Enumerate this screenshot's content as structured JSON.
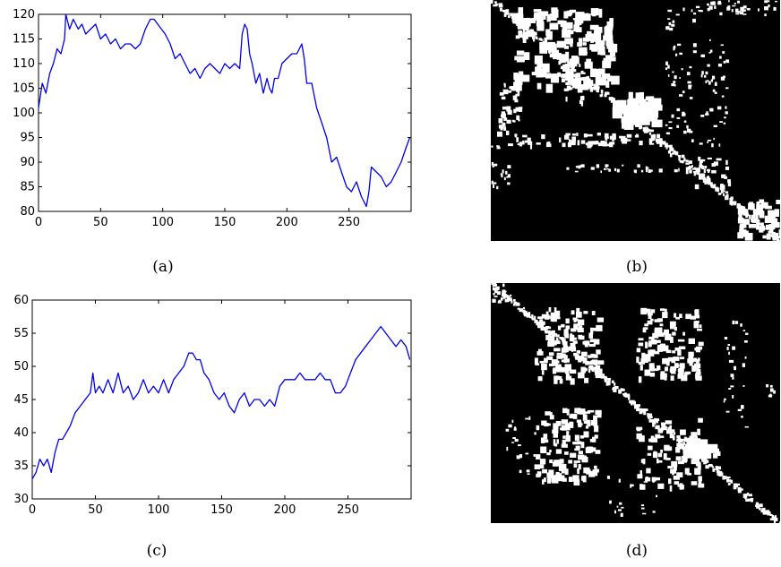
{
  "captions": {
    "a": "(a)",
    "b": "(b)",
    "c": "(c)",
    "d": "(d)"
  },
  "chart_data": [
    {
      "panel": "(a)",
      "type": "line",
      "title": "",
      "xlabel": "",
      "ylabel": "",
      "xlim": [
        0,
        300
      ],
      "ylim": [
        80,
        120
      ],
      "xticks": [
        0,
        50,
        100,
        150,
        200,
        250
      ],
      "yticks": [
        80,
        85,
        90,
        95,
        100,
        105,
        110,
        115,
        120
      ],
      "grid": false,
      "series_color": "#0000ee",
      "series": [
        {
          "x": [
            0,
            3,
            6,
            9,
            12,
            15,
            18,
            21,
            22,
            25,
            28,
            32,
            35,
            38,
            42,
            46,
            50,
            54,
            58,
            62,
            66,
            70,
            74,
            78,
            82,
            86,
            90,
            93,
            96,
            99,
            102,
            106,
            110,
            114,
            118,
            122,
            126,
            130,
            134,
            138,
            142,
            146,
            150,
            154,
            158,
            162,
            164,
            166,
            168,
            170,
            172,
            175,
            178,
            181,
            184,
            186,
            188,
            190,
            193,
            196,
            200,
            204,
            208,
            212,
            214,
            216,
            220,
            224,
            228,
            232,
            236,
            240,
            244,
            248,
            252,
            256,
            260,
            264,
            266,
            268,
            272,
            276,
            280,
            284,
            288,
            292,
            296,
            299
          ],
          "y": [
            101,
            106,
            104,
            108,
            110,
            113,
            112,
            115,
            120,
            117,
            119,
            117,
            118,
            116,
            117,
            118,
            115,
            116,
            114,
            115,
            113,
            114,
            114,
            113,
            114,
            117,
            119,
            119,
            118,
            117,
            116,
            114,
            111,
            112,
            110,
            108,
            109,
            107,
            109,
            110,
            109,
            108,
            110,
            109,
            110,
            109,
            116,
            118,
            117,
            112,
            110,
            106,
            108,
            104,
            107,
            105,
            104,
            107,
            107,
            110,
            111,
            112,
            112,
            114,
            111,
            106,
            106,
            101,
            98,
            95,
            90,
            91,
            88,
            85,
            84,
            86,
            83,
            81,
            84,
            89,
            88,
            87,
            85,
            86,
            88,
            90,
            93,
            95
          ]
        }
      ]
    },
    {
      "panel": "(c)",
      "type": "line",
      "title": "",
      "xlabel": "",
      "ylabel": "",
      "xlim": [
        0,
        300
      ],
      "ylim": [
        30,
        60
      ],
      "xticks": [
        0,
        50,
        100,
        150,
        200,
        250
      ],
      "yticks": [
        30,
        35,
        40,
        45,
        50,
        55,
        60
      ],
      "grid": false,
      "series_color": "#0000ee",
      "series": [
        {
          "x": [
            0,
            3,
            6,
            9,
            12,
            15,
            18,
            21,
            24,
            27,
            30,
            34,
            38,
            42,
            46,
            48,
            50,
            53,
            56,
            60,
            64,
            68,
            72,
            76,
            80,
            84,
            88,
            92,
            96,
            100,
            104,
            108,
            112,
            116,
            120,
            124,
            127,
            130,
            133,
            136,
            140,
            144,
            148,
            152,
            156,
            160,
            164,
            168,
            172,
            176,
            180,
            184,
            188,
            192,
            196,
            200,
            204,
            208,
            212,
            216,
            220,
            224,
            228,
            232,
            236,
            240,
            244,
            248,
            252,
            256,
            260,
            264,
            268,
            272,
            276,
            280,
            284,
            288,
            292,
            296,
            299
          ],
          "y": [
            33,
            34,
            36,
            35,
            36,
            34,
            37,
            39,
            39,
            40,
            41,
            43,
            44,
            45,
            46,
            49,
            46,
            47,
            46,
            48,
            46,
            49,
            46,
            47,
            45,
            46,
            48,
            46,
            47,
            46,
            48,
            46,
            48,
            49,
            50,
            52,
            52,
            51,
            51,
            49,
            48,
            46,
            45,
            46,
            44,
            43,
            45,
            46,
            44,
            45,
            45,
            44,
            45,
            44,
            47,
            48,
            48,
            48,
            49,
            48,
            48,
            48,
            49,
            48,
            48,
            46,
            46,
            47,
            49,
            51,
            52,
            53,
            54,
            55,
            56,
            55,
            54,
            53,
            54,
            53,
            51
          ]
        }
      ]
    },
    {
      "panel": "(b)",
      "type": "heatmap",
      "title": "",
      "description_colors": {
        "background": "#000000",
        "foreground": "#ffffff"
      }
    },
    {
      "panel": "(d)",
      "type": "heatmap",
      "title": "",
      "description_colors": {
        "background": "#000000",
        "foreground": "#ffffff"
      }
    }
  ]
}
